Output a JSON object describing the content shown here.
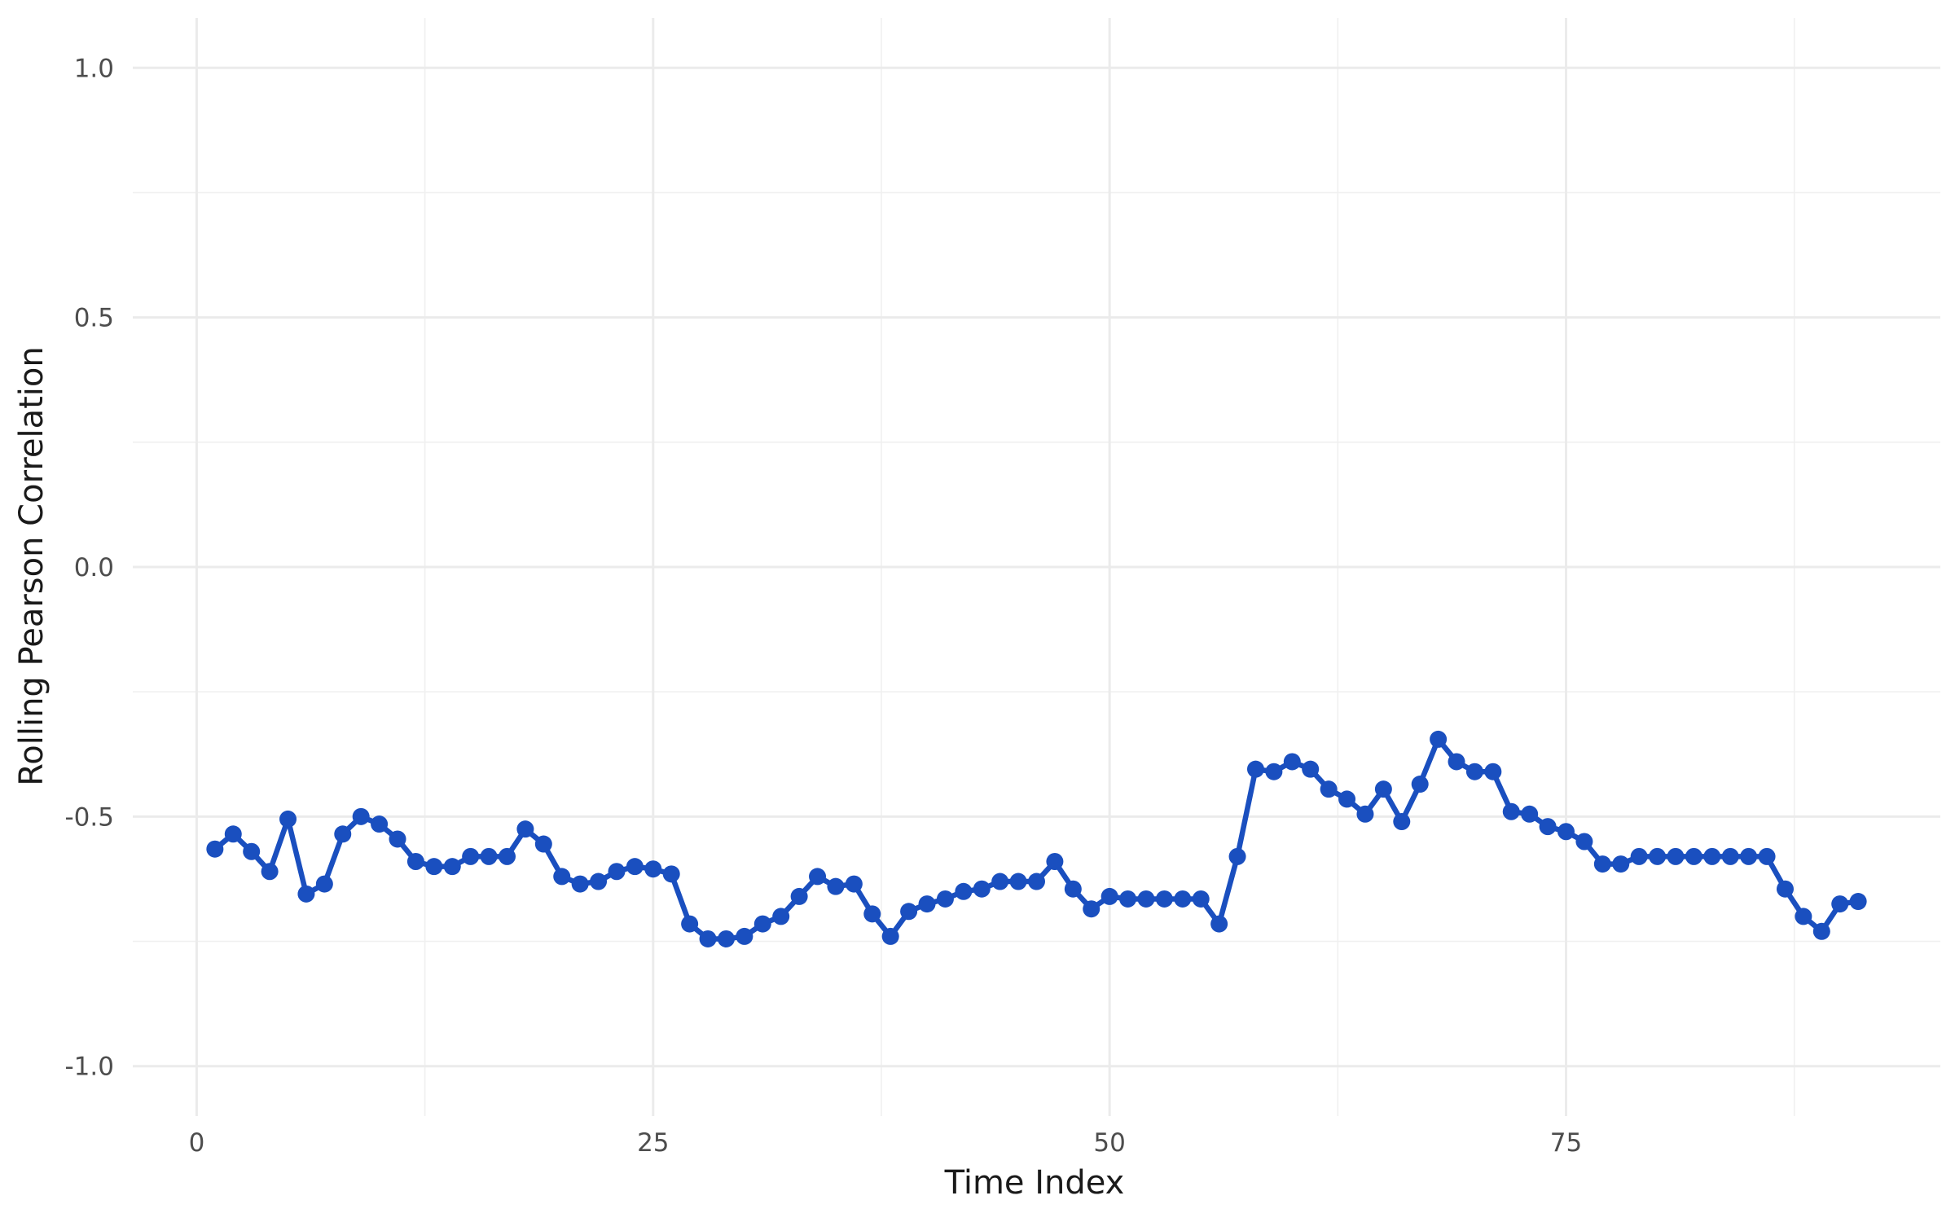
{
  "chart_data": {
    "type": "line",
    "title": "",
    "xlabel": "Time Index",
    "ylabel": "Rolling Pearson Correlation",
    "xlim": [
      -3.5,
      95.5
    ],
    "ylim": [
      -1.1,
      1.1
    ],
    "x_ticks": [
      {
        "value": 0,
        "label": "0"
      },
      {
        "value": 25,
        "label": "25"
      },
      {
        "value": 50,
        "label": "50"
      },
      {
        "value": 75,
        "label": "75"
      }
    ],
    "y_ticks": [
      {
        "value": -1.0,
        "label": "-1.0"
      },
      {
        "value": -0.5,
        "label": "-0.5"
      },
      {
        "value": 0.0,
        "label": "0.0"
      },
      {
        "value": 0.5,
        "label": "0.5"
      },
      {
        "value": 1.0,
        "label": "1.0"
      }
    ],
    "grid": true,
    "series": [
      {
        "color": "#1a4fbf",
        "x": [
          1,
          2,
          3,
          4,
          5,
          6,
          7,
          8,
          9,
          10,
          11,
          12,
          13,
          14,
          15,
          16,
          17,
          18,
          19,
          20,
          21,
          22,
          23,
          24,
          25,
          26,
          27,
          28,
          29,
          30,
          31,
          32,
          33,
          34,
          35,
          36,
          37,
          38,
          39,
          40,
          41,
          42,
          43,
          44,
          45,
          46,
          47,
          48,
          49,
          50,
          51,
          52,
          53,
          54,
          55,
          56,
          57,
          58,
          59,
          60,
          61,
          62,
          63,
          64,
          65,
          66,
          67,
          68,
          69,
          70,
          71,
          72,
          73,
          74,
          75,
          76,
          77,
          78,
          79,
          80,
          81,
          82,
          83,
          84,
          85,
          86,
          87,
          88,
          89,
          90,
          91
        ],
        "values": [
          -0.565,
          -0.535,
          -0.57,
          -0.61,
          -0.505,
          -0.655,
          -0.635,
          -0.535,
          -0.5,
          -0.515,
          -0.545,
          -0.59,
          -0.6,
          -0.6,
          -0.58,
          -0.58,
          -0.58,
          -0.525,
          -0.555,
          -0.62,
          -0.635,
          -0.63,
          -0.61,
          -0.6,
          -0.605,
          -0.615,
          -0.715,
          -0.745,
          -0.745,
          -0.74,
          -0.715,
          -0.7,
          -0.66,
          -0.62,
          -0.64,
          -0.635,
          -0.695,
          -0.74,
          -0.69,
          -0.675,
          -0.665,
          -0.65,
          -0.645,
          -0.63,
          -0.63,
          -0.63,
          -0.59,
          -0.645,
          -0.685,
          -0.66,
          -0.665,
          -0.665,
          -0.665,
          -0.665,
          -0.665,
          -0.715,
          -0.58,
          -0.405,
          -0.41,
          -0.39,
          -0.405,
          -0.445,
          -0.465,
          -0.495,
          -0.445,
          -0.51,
          -0.435,
          -0.345,
          -0.39,
          -0.41,
          -0.41,
          -0.49,
          -0.495,
          -0.52,
          -0.53,
          -0.55,
          -0.595,
          -0.595,
          -0.58,
          -0.58,
          -0.58,
          -0.58,
          -0.58,
          -0.58,
          -0.58,
          -0.58,
          -0.645,
          -0.7,
          -0.73,
          -0.675,
          -0.67
        ]
      }
    ]
  }
}
